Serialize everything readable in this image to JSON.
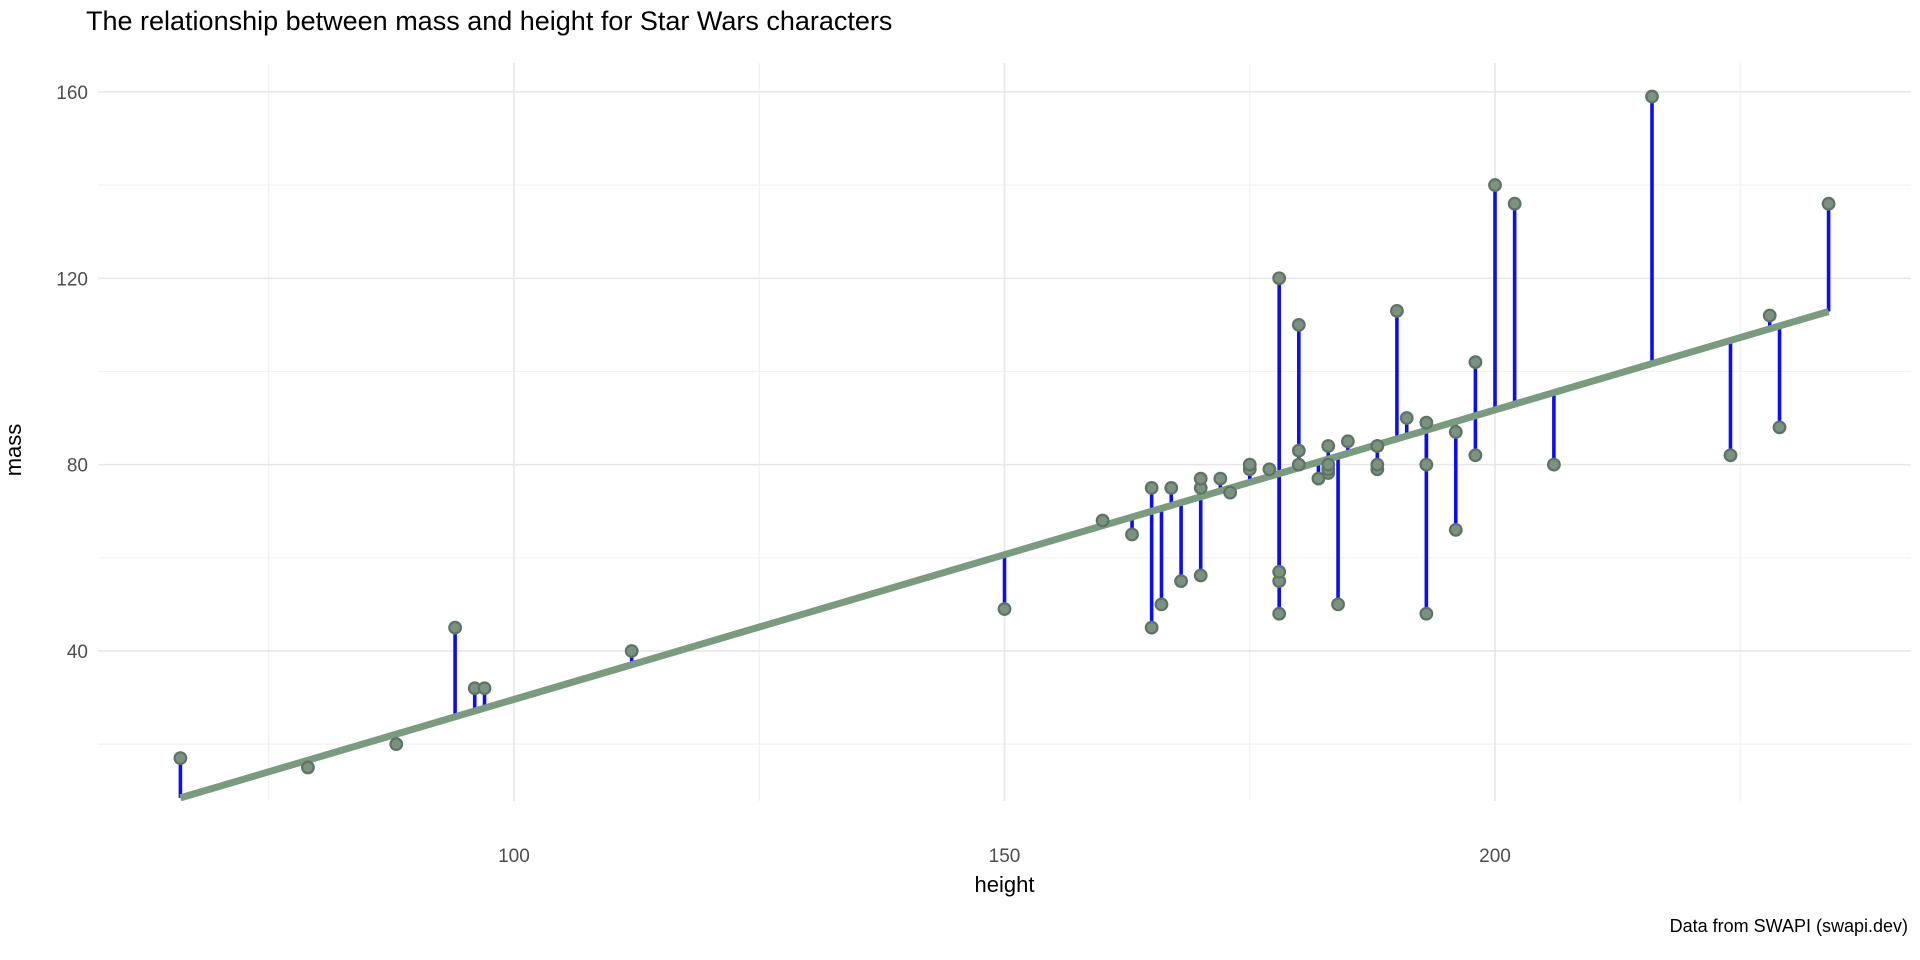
{
  "title": "The relationship between mass and height for Star Wars characters",
  "caption": "Data from SWAPI (swapi.dev)",
  "chart_data": {
    "type": "scatter",
    "title": "The relationship between mass and height for Star Wars characters",
    "xlabel": "height",
    "ylabel": "mass",
    "caption": "Data from SWAPI (swapi.dev)",
    "xlim": [
      57.6,
      242.4
    ],
    "ylim": [
      7.8,
      166.2
    ],
    "x_ticks": [
      100,
      150,
      200
    ],
    "y_ticks": [
      40,
      80,
      120,
      160
    ],
    "x_minor_gridlines": [
      75,
      125,
      175,
      225
    ],
    "y_minor_gridlines": [
      20,
      60,
      100,
      140
    ],
    "grid": true,
    "legend": false,
    "points": [
      [
        66,
        17
      ],
      [
        79,
        15
      ],
      [
        88,
        20
      ],
      [
        94,
        45
      ],
      [
        96,
        32
      ],
      [
        97,
        32
      ],
      [
        112,
        40
      ],
      [
        150,
        49
      ],
      [
        160,
        68
      ],
      [
        163,
        65
      ],
      [
        165,
        45
      ],
      [
        165,
        75
      ],
      [
        166,
        50
      ],
      [
        167,
        75
      ],
      [
        168,
        55
      ],
      [
        170,
        56.2
      ],
      [
        170,
        75
      ],
      [
        170,
        77
      ],
      [
        172,
        77
      ],
      [
        173,
        74
      ],
      [
        175,
        79
      ],
      [
        175,
        80
      ],
      [
        177,
        79
      ],
      [
        178,
        48
      ],
      [
        178,
        55
      ],
      [
        178,
        57
      ],
      [
        178,
        120
      ],
      [
        180,
        80
      ],
      [
        180,
        83
      ],
      [
        180,
        110
      ],
      [
        182,
        77
      ],
      [
        183,
        78.2
      ],
      [
        183,
        79
      ],
      [
        183,
        80
      ],
      [
        183,
        84
      ],
      [
        184,
        50
      ],
      [
        185,
        85
      ],
      [
        188,
        79
      ],
      [
        188,
        80
      ],
      [
        188,
        84
      ],
      [
        188,
        84
      ],
      [
        190,
        113
      ],
      [
        191,
        90
      ],
      [
        193,
        48
      ],
      [
        193,
        80
      ],
      [
        193,
        89
      ],
      [
        196,
        66
      ],
      [
        196,
        87
      ],
      [
        198,
        82
      ],
      [
        198,
        102
      ],
      [
        200,
        140
      ],
      [
        202,
        136
      ],
      [
        206,
        80
      ],
      [
        216,
        159
      ],
      [
        224,
        82
      ],
      [
        228,
        112
      ],
      [
        229,
        88
      ],
      [
        234,
        136
      ]
    ],
    "trend_line": {
      "kind": "linear-regression",
      "intercept": -32.54,
      "slope": 0.6214,
      "x_start": 66,
      "x_end": 234
    },
    "residual_segments_shown": true
  },
  "colors": {
    "background": "#ffffff",
    "point_fill": "#7b9280",
    "point_stroke": "#5d7366",
    "trend_line": "#7a9b80",
    "residual_line": "#0d0df2",
    "grid_major": "#e7e7e7",
    "grid_minor": "#f1f1f1",
    "axis_text": "#4d4d4d",
    "title_text": "#000000"
  }
}
